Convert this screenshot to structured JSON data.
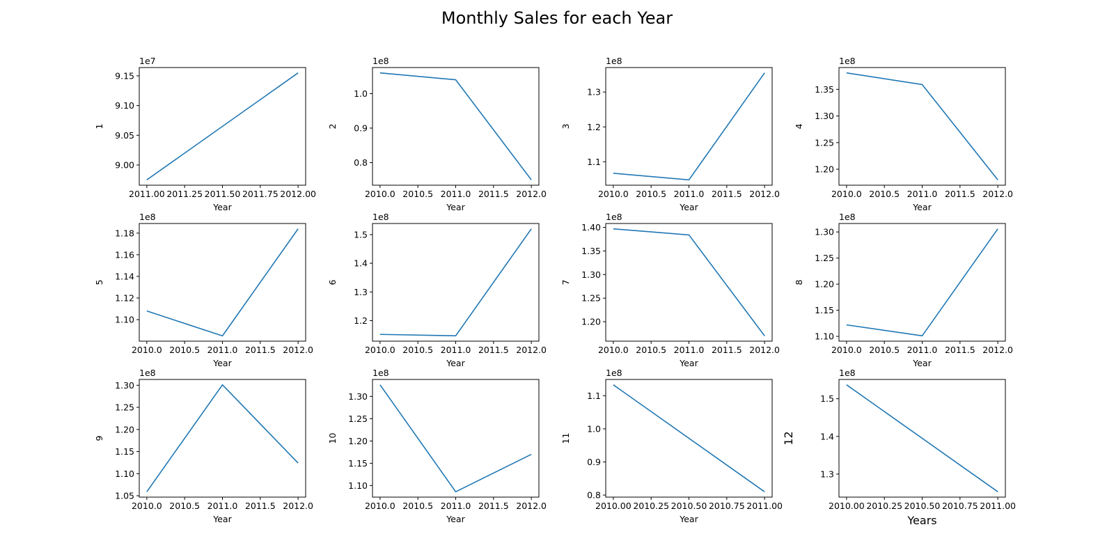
{
  "title": "Monthly Sales for each Year",
  "line_color": "#1f77b4",
  "chart_data": [
    {
      "type": "line",
      "ylabel": "1",
      "xlabel": "Year",
      "offset": "1e7",
      "x": [
        2011,
        2012
      ],
      "y": [
        8.975,
        9.155
      ],
      "xlim": [
        2010.95,
        2012.05
      ],
      "ylim": [
        8.966,
        9.164
      ],
      "xticks": [
        2011,
        2011.25,
        2011.5,
        2011.75,
        2012
      ],
      "xtick_labels": [
        "2011.00",
        "2011.25",
        "2011.50",
        "2011.75",
        "2012.00"
      ],
      "yticks": [
        9.0,
        9.05,
        9.1,
        9.15
      ],
      "ytick_labels": [
        "9.00",
        "9.05",
        "9.10",
        "9.15"
      ]
    },
    {
      "type": "line",
      "ylabel": "2",
      "xlabel": "Year",
      "offset": "1e8",
      "x": [
        2010,
        2011,
        2012
      ],
      "y": [
        1.06,
        1.04,
        0.75
      ],
      "xlim": [
        2009.9,
        2012.1
      ],
      "ylim": [
        0.7345,
        1.0755
      ],
      "xticks": [
        2010,
        2010.5,
        2011,
        2011.5,
        2012
      ],
      "xtick_labels": [
        "2010.0",
        "2010.5",
        "2011.0",
        "2011.5",
        "2012.0"
      ],
      "yticks": [
        0.8,
        0.9,
        1.0
      ],
      "ytick_labels": [
        "0.8",
        "0.9",
        "1.0"
      ]
    },
    {
      "type": "line",
      "ylabel": "3",
      "xlabel": "Year",
      "offset": "1e8",
      "x": [
        2010,
        2011,
        2012
      ],
      "y": [
        1.067,
        1.048,
        1.355
      ],
      "xlim": [
        2009.9,
        2012.1
      ],
      "ylim": [
        1.0327,
        1.3703
      ],
      "xticks": [
        2010,
        2010.5,
        2011,
        2011.5,
        2012
      ],
      "xtick_labels": [
        "2010.0",
        "2010.5",
        "2011.0",
        "2011.5",
        "2012.0"
      ],
      "yticks": [
        1.1,
        1.2,
        1.3
      ],
      "ytick_labels": [
        "1.1",
        "1.2",
        "1.3"
      ]
    },
    {
      "type": "line",
      "ylabel": "4",
      "xlabel": "Year",
      "offset": "1e8",
      "x": [
        2010,
        2011,
        2012
      ],
      "y": [
        1.381,
        1.359,
        1.18
      ],
      "xlim": [
        2009.9,
        2012.1
      ],
      "ylim": [
        1.17,
        1.391
      ],
      "xticks": [
        2010,
        2010.5,
        2011,
        2011.5,
        2012
      ],
      "xtick_labels": [
        "2010.0",
        "2010.5",
        "2011.0",
        "2011.5",
        "2012.0"
      ],
      "yticks": [
        1.2,
        1.25,
        1.3,
        1.35
      ],
      "ytick_labels": [
        "1.20",
        "1.25",
        "1.30",
        "1.35"
      ]
    },
    {
      "type": "line",
      "ylabel": "5",
      "xlabel": "Year",
      "offset": "1e8",
      "x": [
        2010,
        2011,
        2012
      ],
      "y": [
        1.108,
        1.085,
        1.184
      ],
      "xlim": [
        2009.9,
        2012.1
      ],
      "ylim": [
        1.0801,
        1.1889
      ],
      "xticks": [
        2010,
        2010.5,
        2011,
        2011.5,
        2012
      ],
      "xtick_labels": [
        "2010.0",
        "2010.5",
        "2011.0",
        "2011.5",
        "2012.0"
      ],
      "yticks": [
        1.1,
        1.12,
        1.14,
        1.16,
        1.18
      ],
      "ytick_labels": [
        "1.10",
        "1.12",
        "1.14",
        "1.16",
        "1.18"
      ]
    },
    {
      "type": "line",
      "ylabel": "6",
      "xlabel": "Year",
      "offset": "1e8",
      "x": [
        2010,
        2011,
        2012
      ],
      "y": [
        1.152,
        1.147,
        1.52
      ],
      "xlim": [
        2009.9,
        2012.1
      ],
      "ylim": [
        1.1283,
        1.5387
      ],
      "xticks": [
        2010,
        2010.5,
        2011,
        2011.5,
        2012
      ],
      "xtick_labels": [
        "2010.0",
        "2010.5",
        "2011.0",
        "2011.5",
        "2012.0"
      ],
      "yticks": [
        1.2,
        1.3,
        1.4,
        1.5
      ],
      "ytick_labels": [
        "1.2",
        "1.3",
        "1.4",
        "1.5"
      ]
    },
    {
      "type": "line",
      "ylabel": "7",
      "xlabel": "Year",
      "offset": "1e8",
      "x": [
        2010,
        2011,
        2012
      ],
      "y": [
        1.397,
        1.384,
        1.17
      ],
      "xlim": [
        2009.9,
        2012.1
      ],
      "ylim": [
        1.1587,
        1.4083
      ],
      "xticks": [
        2010,
        2010.5,
        2011,
        2011.5,
        2012
      ],
      "xtick_labels": [
        "2010.0",
        "2010.5",
        "2011.0",
        "2011.5",
        "2012.0"
      ],
      "yticks": [
        1.2,
        1.25,
        1.3,
        1.35,
        1.4
      ],
      "ytick_labels": [
        "1.20",
        "1.25",
        "1.30",
        "1.35",
        "1.40"
      ]
    },
    {
      "type": "line",
      "ylabel": "8",
      "xlabel": "Year",
      "offset": "1e8",
      "x": [
        2010,
        2011,
        2012
      ],
      "y": [
        1.122,
        1.101,
        1.306
      ],
      "xlim": [
        2009.9,
        2012.1
      ],
      "ylim": [
        1.0908,
        1.3162
      ],
      "xticks": [
        2010,
        2010.5,
        2011,
        2011.5,
        2012
      ],
      "xtick_labels": [
        "2010.0",
        "2010.5",
        "2011.0",
        "2011.5",
        "2012.0"
      ],
      "yticks": [
        1.1,
        1.15,
        1.2,
        1.25,
        1.3
      ],
      "ytick_labels": [
        "1.10",
        "1.15",
        "1.20",
        "1.25",
        "1.30"
      ]
    },
    {
      "type": "line",
      "ylabel": "9",
      "xlabel": "Year",
      "offset": "1e8",
      "x": [
        2010,
        2011,
        2012
      ],
      "y": [
        1.059,
        1.301,
        1.124
      ],
      "xlim": [
        2009.9,
        2012.1
      ],
      "ylim": [
        1.0469,
        1.3131
      ],
      "xticks": [
        2010,
        2010.5,
        2011,
        2011.5,
        2012
      ],
      "xtick_labels": [
        "2010.0",
        "2010.5",
        "2011.0",
        "2011.5",
        "2012.0"
      ],
      "yticks": [
        1.05,
        1.1,
        1.15,
        1.2,
        1.25,
        1.3
      ],
      "ytick_labels": [
        "1.05",
        "1.10",
        "1.15",
        "1.20",
        "1.25",
        "1.30"
      ]
    },
    {
      "type": "line",
      "ylabel": "10",
      "xlabel": "Year",
      "offset": "1e8",
      "x": [
        2010,
        2011,
        2012
      ],
      "y": [
        1.326,
        1.086,
        1.17
      ],
      "xlim": [
        2009.9,
        2012.1
      ],
      "ylim": [
        1.074,
        1.338
      ],
      "xticks": [
        2010,
        2010.5,
        2011,
        2011.5,
        2012
      ],
      "xtick_labels": [
        "2010.0",
        "2010.5",
        "2011.0",
        "2011.5",
        "2012.0"
      ],
      "yticks": [
        1.1,
        1.15,
        1.2,
        1.25,
        1.3
      ],
      "ytick_labels": [
        "1.10",
        "1.15",
        "1.20",
        "1.25",
        "1.30"
      ]
    },
    {
      "type": "line",
      "ylabel": "11",
      "xlabel": "Year",
      "offset": "1e8",
      "x": [
        2010,
        2011
      ],
      "y": [
        1.133,
        0.81
      ],
      "xlim": [
        2009.95,
        2011.05
      ],
      "ylim": [
        0.7938,
        1.1492
      ],
      "xticks": [
        2010,
        2010.25,
        2010.5,
        2010.75,
        2011
      ],
      "xtick_labels": [
        "2010.00",
        "2010.25",
        "2010.50",
        "2010.75",
        "2011.00"
      ],
      "yticks": [
        0.8,
        0.9,
        1.0,
        1.1
      ],
      "ytick_labels": [
        "0.8",
        "0.9",
        "1.0",
        "1.1"
      ]
    },
    {
      "type": "line",
      "ylabel": "12",
      "xlabel": "Years",
      "offset": "1e8",
      "large_labels": true,
      "x": [
        2010,
        2011
      ],
      "y": [
        1.537,
        1.253
      ],
      "xlim": [
        2009.95,
        2011.05
      ],
      "ylim": [
        1.2388,
        1.5512
      ],
      "xticks": [
        2010,
        2010.25,
        2010.5,
        2010.75,
        2011
      ],
      "xtick_labels": [
        "2010.00",
        "2010.25",
        "2010.50",
        "2010.75",
        "2011.00"
      ],
      "yticks": [
        1.3,
        1.4,
        1.5
      ],
      "ytick_labels": [
        "1.3",
        "1.4",
        "1.5"
      ]
    }
  ]
}
